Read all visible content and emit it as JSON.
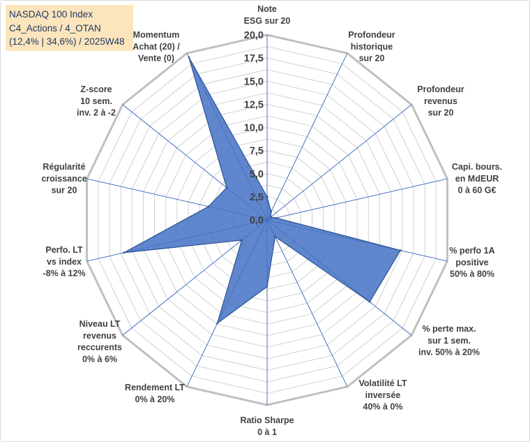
{
  "chart_data": {
    "type": "radar",
    "title_lines": [
      "NASDAQ 100 Index",
      "C4_Actions / 4_OTAN",
      "(12,4% | 34,6%) / 2025W48"
    ],
    "categories": [
      [
        "Note",
        "ESG sur 20"
      ],
      [
        "Profondeur",
        "historique",
        "sur 20"
      ],
      [
        "Profondeur",
        "revenus",
        "sur 20"
      ],
      [
        "Capi. bours.",
        "en MdEUR",
        "0 à 60 G€"
      ],
      [
        "% perfo 1A",
        "positive",
        "50% à 80%"
      ],
      [
        "% perte max.",
        "sur 1 sem.",
        "inv. 50% à 20%"
      ],
      [
        "Volatilité LT",
        "inversée",
        "40% à 0%"
      ],
      [
        "Ratio Sharpe",
        "0 à 1"
      ],
      [
        "Rendement LT",
        "0% à 20%"
      ],
      [
        "Niveau LT",
        "revenus",
        "reccurents",
        "0% à 6%"
      ],
      [
        "Perfo. LT",
        "vs index",
        "-8% à 12%"
      ],
      [
        "Régularité",
        "croissance",
        "sur 20"
      ],
      [
        "Z-score",
        "10 sem.",
        "inv. 2 à -2"
      ],
      [
        "Momentum",
        "Achat (20) /",
        "Vente (0)"
      ]
    ],
    "series": [
      {
        "values": [
          2.5,
          1.0,
          0.5,
          1.0,
          14.8,
          14.2,
          2.0,
          7.2,
          12.4,
          3.5,
          15.9,
          6.5,
          5.6,
          19.5
        ]
      }
    ],
    "rlim": [
      0,
      20
    ],
    "tick_values": [
      0,
      2.5,
      5,
      7.5,
      10,
      12.5,
      15,
      17.5,
      20
    ],
    "ticks": [
      "0,0",
      "2,5",
      "5,0",
      "7,5",
      "10,0",
      "12,5",
      "15,0",
      "17,5",
      "20,0"
    ],
    "grid": true,
    "legend": "none",
    "colors": {
      "series_fill": "#4472C4",
      "series_stroke": "#2F5597",
      "axis": "#4472C4",
      "grid": "#D0D0D0",
      "grid_outer": "#BFBFBF",
      "label_text": "#404040",
      "info_text": "#1F3864",
      "box_background": "#FCE5BC",
      "border": "#D9D9D9"
    }
  }
}
